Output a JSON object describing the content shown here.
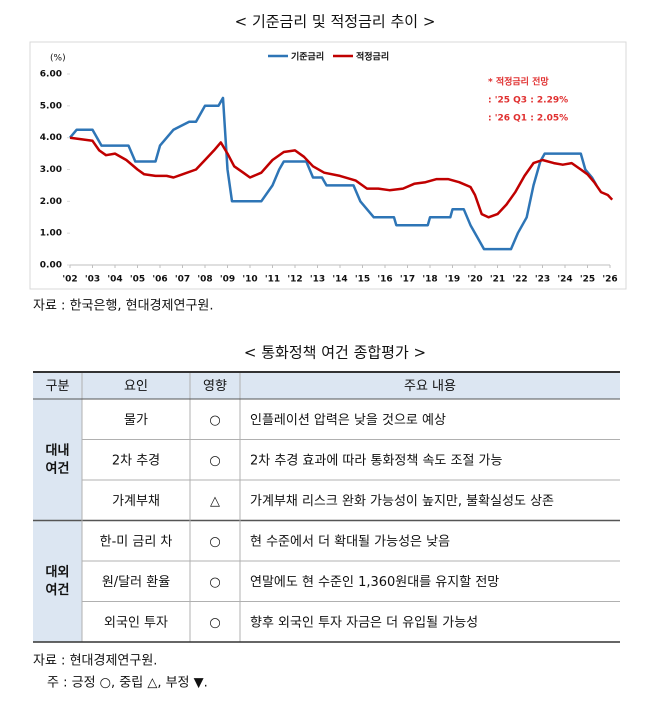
{
  "chart_title": "< 기준금리 및 적정금리 추이 >",
  "chart_data": {
    "type": "line",
    "y_label": "(%)",
    "xlim": [
      2002,
      2026
    ],
    "xticks": [
      {
        "value": 2002,
        "label": "'02"
      },
      {
        "value": 2003,
        "label": "'03"
      },
      {
        "value": 2004,
        "label": "'04"
      },
      {
        "value": 2005,
        "label": "'05"
      },
      {
        "value": 2006,
        "label": "'06"
      },
      {
        "value": 2007,
        "label": "'07"
      },
      {
        "value": 2008,
        "label": "'08"
      },
      {
        "value": 2009,
        "label": "'09"
      },
      {
        "value": 2010,
        "label": "'10"
      },
      {
        "value": 2011,
        "label": "'11"
      },
      {
        "value": 2012,
        "label": "'12"
      },
      {
        "value": 2013,
        "label": "'13"
      },
      {
        "value": 2014,
        "label": "'14"
      },
      {
        "value": 2015,
        "label": "'15"
      },
      {
        "value": 2016,
        "label": "'16"
      },
      {
        "value": 2017,
        "label": "'17"
      },
      {
        "value": 2018,
        "label": "'18"
      },
      {
        "value": 2019,
        "label": "'19"
      },
      {
        "value": 2020,
        "label": "'20"
      },
      {
        "value": 2021,
        "label": "'21"
      },
      {
        "value": 2022,
        "label": "'22"
      },
      {
        "value": 2023,
        "label": "'23"
      },
      {
        "value": 2024,
        "label": "'24"
      },
      {
        "value": 2025,
        "label": "'25"
      },
      {
        "value": 2026,
        "label": "'26"
      }
    ],
    "ylim": [
      0,
      6
    ],
    "yticks": [
      {
        "value": 0,
        "label": "0.00"
      },
      {
        "value": 1,
        "label": "1.00"
      },
      {
        "value": 2,
        "label": "2.00"
      },
      {
        "value": 3,
        "label": "3.00"
      },
      {
        "value": 4,
        "label": "4.00"
      },
      {
        "value": 5,
        "label": "5.00"
      },
      {
        "value": 6,
        "label": "6.00"
      }
    ],
    "grid": false,
    "legend": "top",
    "series": [
      {
        "name": "기준금리",
        "color": "#2e75b6",
        "x": [
          2002.0,
          2002.3,
          2003.0,
          2003.4,
          2004.6,
          2004.9,
          2005.8,
          2006.0,
          2006.6,
          2007.3,
          2007.6,
          2008.0,
          2008.6,
          2008.8,
          2009.0,
          2009.2,
          2010.5,
          2011.0,
          2011.3,
          2011.5,
          2012.5,
          2012.8,
          2013.2,
          2013.4,
          2014.6,
          2014.9,
          2015.5,
          2016.4,
          2016.5,
          2017.9,
          2018.0,
          2018.9,
          2019.0,
          2019.5,
          2019.8,
          2020.2,
          2020.4,
          2021.6,
          2021.9,
          2022.3,
          2022.6,
          2022.9,
          2023.1,
          2024.7,
          2024.9,
          2025.2,
          2025.4
        ],
        "values": [
          4.0,
          4.25,
          4.25,
          3.75,
          3.75,
          3.25,
          3.25,
          3.75,
          4.25,
          4.5,
          4.5,
          5.0,
          5.0,
          5.25,
          3.0,
          2.0,
          2.0,
          2.5,
          3.0,
          3.25,
          3.25,
          2.75,
          2.75,
          2.5,
          2.5,
          2.0,
          1.5,
          1.5,
          1.25,
          1.25,
          1.5,
          1.5,
          1.75,
          1.75,
          1.25,
          0.75,
          0.5,
          0.5,
          1.0,
          1.5,
          2.5,
          3.25,
          3.5,
          3.5,
          3.0,
          2.75,
          2.5
        ]
      },
      {
        "name": "적정금리",
        "color": "#c00000",
        "x": [
          2002.0,
          2002.5,
          2003.0,
          2003.3,
          2003.6,
          2004.0,
          2004.5,
          2005.0,
          2005.3,
          2005.8,
          2006.3,
          2006.6,
          2007.0,
          2007.6,
          2008.0,
          2008.4,
          2008.7,
          2009.0,
          2009.3,
          2009.7,
          2010.0,
          2010.5,
          2011.0,
          2011.5,
          2012.0,
          2012.4,
          2012.8,
          2013.3,
          2014.0,
          2014.7,
          2015.2,
          2015.7,
          2016.2,
          2016.8,
          2017.3,
          2017.8,
          2018.3,
          2018.8,
          2019.3,
          2019.8,
          2020.0,
          2020.3,
          2020.6,
          2021.0,
          2021.4,
          2021.8,
          2022.2,
          2022.6,
          2023.0,
          2023.5,
          2023.9,
          2024.3,
          2024.7,
          2025.0,
          2025.3,
          2025.6,
          2025.9,
          2026.1
        ],
        "values": [
          4.0,
          3.95,
          3.9,
          3.6,
          3.45,
          3.5,
          3.3,
          3.0,
          2.85,
          2.8,
          2.8,
          2.75,
          2.85,
          3.0,
          3.3,
          3.6,
          3.85,
          3.5,
          3.1,
          2.9,
          2.75,
          2.9,
          3.3,
          3.55,
          3.6,
          3.4,
          3.1,
          2.9,
          2.8,
          2.65,
          2.4,
          2.4,
          2.35,
          2.4,
          2.55,
          2.6,
          2.7,
          2.7,
          2.6,
          2.45,
          2.2,
          1.6,
          1.5,
          1.6,
          1.9,
          2.3,
          2.8,
          3.2,
          3.3,
          3.2,
          3.15,
          3.2,
          3.0,
          2.85,
          2.6,
          2.29,
          2.2,
          2.05
        ]
      }
    ],
    "annotations": [
      "* 적정금리 전망",
      ": '25 Q3  : 2.29%",
      ": '26 Q1  : 2.05%"
    ]
  },
  "chart_source": "자료 : 한국은행, 현대경제연구원.",
  "table_title": "< 통화정책 여건 종합평가 >",
  "table": {
    "headers": [
      "구분",
      "요인",
      "영향",
      "주요 내용"
    ],
    "groups": [
      {
        "label_lines": [
          "대내",
          "여건"
        ],
        "rows": [
          [
            "물가",
            "○",
            "인플레이션 압력은 낮을 것으로 예상"
          ],
          [
            "2차 추경",
            "○",
            "2차 추경 효과에 따라 통화정책 속도 조절 가능"
          ],
          [
            "가계부채",
            "△",
            "가계부채 리스크 완화 가능성이 높지만, 불확실성도 상존"
          ]
        ]
      },
      {
        "label_lines": [
          "대외",
          "여건"
        ],
        "rows": [
          [
            "한-미 금리 차",
            "○",
            "현 수준에서 더 확대될 가능성은 낮음"
          ],
          [
            "원/달러 환율",
            "○",
            "연말에도 현 수준인 1,360원대를 유지할 전망"
          ],
          [
            "외국인 투자",
            "○",
            "향후 외국인 투자 자금은 더 유입될 가능성"
          ]
        ]
      }
    ]
  },
  "notes": [
    "자료 : 현대경제연구원.",
    "주 : 긍정 ○, 중립 △, 부정 ▼."
  ]
}
